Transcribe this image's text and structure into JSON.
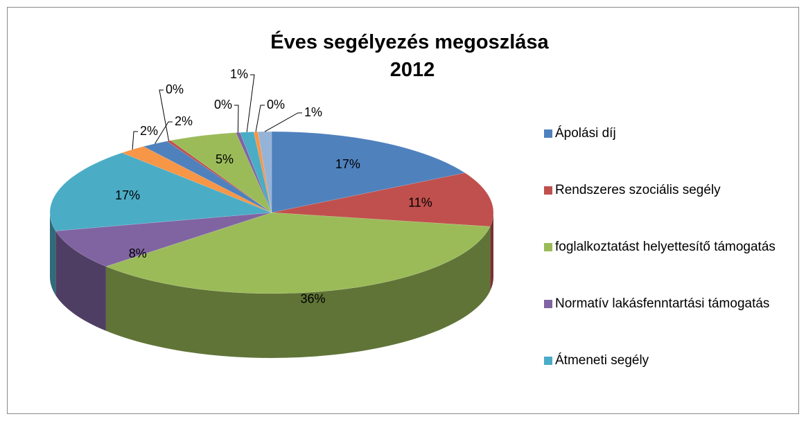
{
  "chart_data": {
    "type": "pie",
    "title": "Éves segélyezés megoszlása 2012",
    "categories": [
      "Ápolási díj",
      "Rendszeres szociális segély",
      "foglalkoztatást helyettesítő támogatás",
      "Normatív lakásfenntartási támogatás",
      "Átmeneti segély",
      null,
      null,
      null,
      null,
      null,
      null,
      null,
      null
    ],
    "values": [
      17,
      11,
      36,
      8,
      17,
      2,
      2,
      0.3,
      5,
      0.3,
      1,
      0.3,
      1
    ],
    "value_labels": [
      "17%",
      "11%",
      "36%",
      "8%",
      "17%",
      "2%",
      "2%",
      "0%",
      "5%",
      "0%",
      "1%",
      "0%",
      "1%"
    ],
    "colors": [
      "#4F81BD",
      "#C0504D",
      "#9BBB59",
      "#8064A2",
      "#4BACC6",
      "#F79646",
      "#4F81BD",
      "#C0504D",
      "#9BBB59",
      "#8064A2",
      "#4BACC6",
      "#F79646",
      "#95B3D7"
    ],
    "legend": "right"
  }
}
